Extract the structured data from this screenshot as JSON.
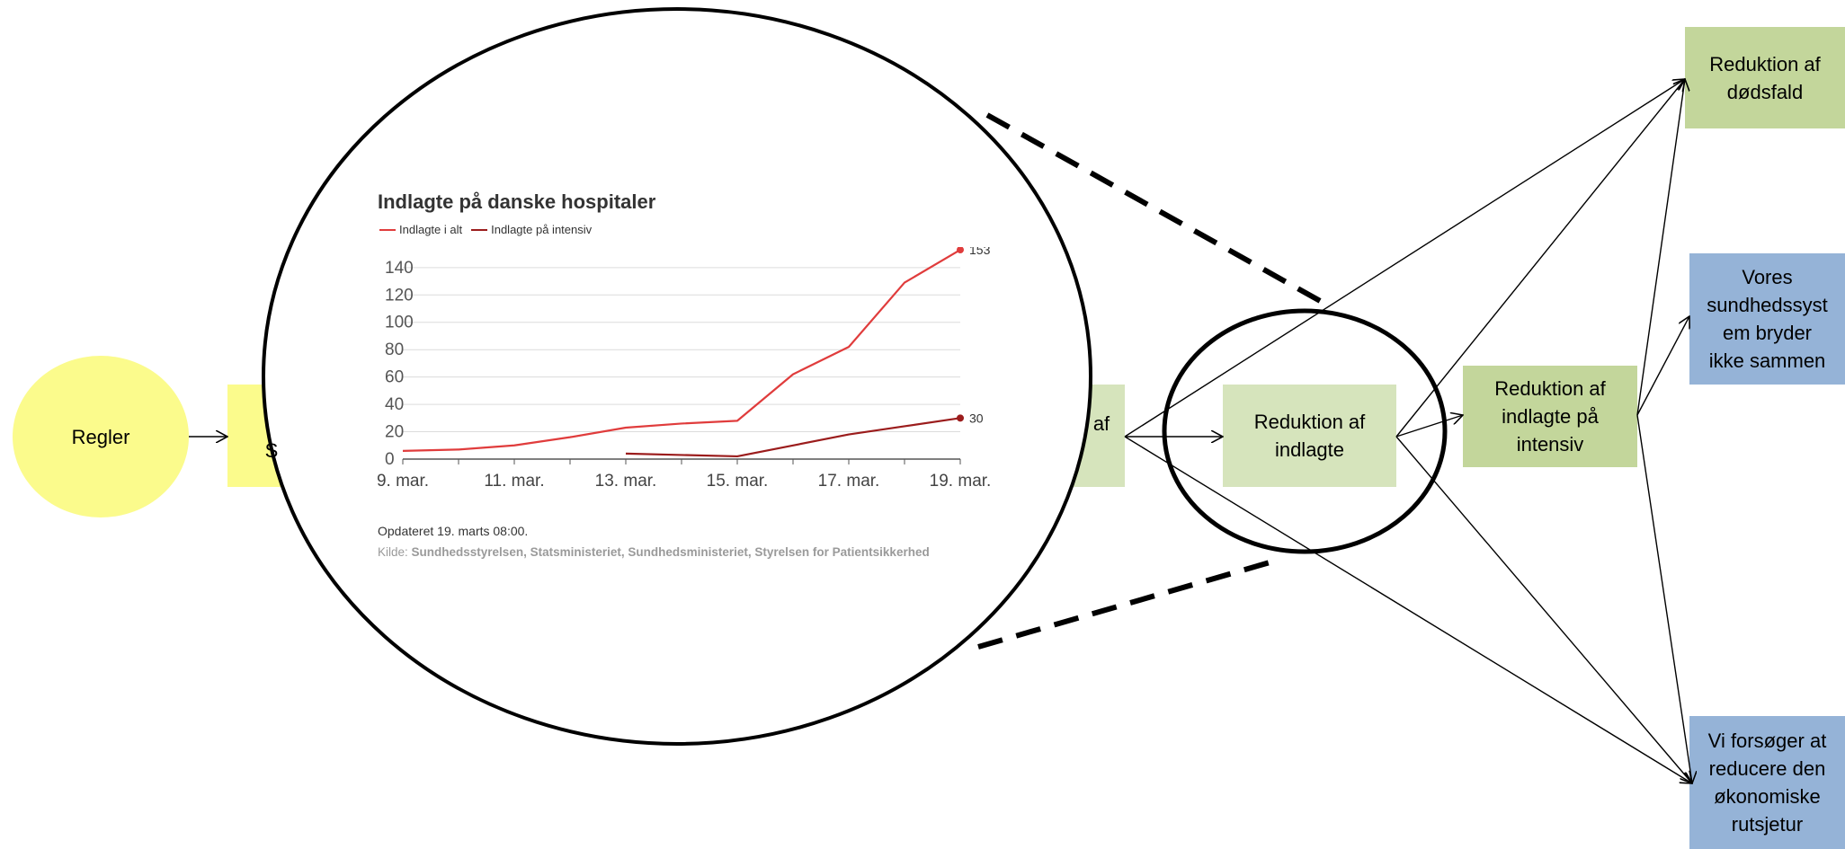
{
  "nodes": {
    "regler": "Regler",
    "partial_box_a": "S",
    "partial_box_b": "af",
    "reduktion_indlagte": "Reduktion af\nindlagte",
    "reduktion_intensiv": "Reduktion af\nindlagte på\nintensiv",
    "reduktion_dodsfald": "Reduktion af\ndødsfald",
    "sundhedssystem": "Vores\nsundhedssyst\nem bryder\nikke sammen",
    "okonomiske": "Vi forsøger at\nreducere den\nøkonomiske\nrutsjetur"
  },
  "colors": {
    "yellow": "#fbfb8c",
    "green_light": "#d6e4bc",
    "green": "#c3d69b",
    "blue": "#95b3d7",
    "series_total": "#e03c3c",
    "series_icu": "#9b1c1c"
  },
  "chart": {
    "title": "Indlagte på danske hospitaler",
    "legend": [
      "Indlagte i alt",
      "Indlagte på intensiv"
    ],
    "updated": "Opdateret 19. marts 08:00.",
    "source_prefix": "Kilde: ",
    "source": "Sundhedsstyrelsen, Statsministeriet, Sundhedsministeriet, Styrelsen for Patientsikkerhed"
  },
  "chart_data": {
    "type": "line",
    "title": "Indlagte på danske hospitaler",
    "x": [
      "9. mar.",
      "10. mar.",
      "11. mar.",
      "12. mar.",
      "13. mar.",
      "14. mar.",
      "15. mar.",
      "16. mar.",
      "17. mar.",
      "18. mar.",
      "19. mar."
    ],
    "x_tick_labels": [
      "9. mar.",
      "11. mar.",
      "13. mar.",
      "15. mar.",
      "17. mar.",
      "19. mar."
    ],
    "series": [
      {
        "name": "Indlagte i alt",
        "values": [
          6,
          7,
          10,
          16,
          23,
          26,
          28,
          62,
          82,
          129,
          153
        ],
        "end_label": "153"
      },
      {
        "name": "Indlagte på intensiv",
        "values": [
          null,
          null,
          null,
          null,
          4,
          3,
          2,
          10,
          18,
          24,
          30
        ],
        "end_label": "30"
      }
    ],
    "yticks": [
      0,
      20,
      40,
      60,
      80,
      100,
      120,
      140
    ],
    "ylim": [
      0,
      155
    ],
    "grid": true,
    "legend_position": "top-left"
  }
}
